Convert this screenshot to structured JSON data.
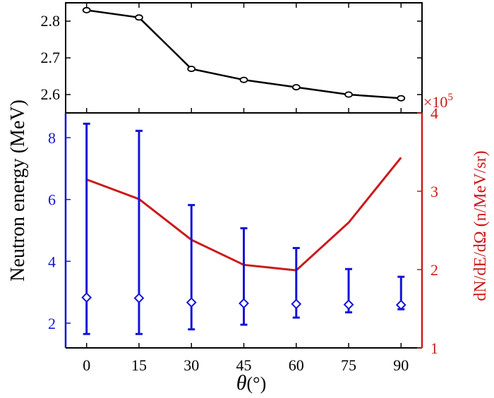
{
  "colors": {
    "top_line": "#000000",
    "left_axis": "#1414d6",
    "right_axis": "#cc1a1a"
  },
  "labels": {
    "ylabel_left": "Neutron energy (MeV)",
    "ylabel_right": "dN/dE/dΩ (n/MeV/sr)",
    "xlabel_symbol": "θ",
    "xlabel_unit": "(°)",
    "multiplier_prefix": "×10",
    "multiplier_exp": "5"
  },
  "chart_data": [
    {
      "type": "line",
      "panel": "top",
      "x": [
        0,
        15,
        30,
        45,
        60,
        75,
        90
      ],
      "series": [
        {
          "values": [
            2.83,
            2.81,
            2.67,
            2.64,
            2.62,
            2.6,
            2.59
          ],
          "color": "#000000",
          "marker": "circle"
        }
      ],
      "ylim": [
        2.55,
        2.85
      ],
      "yticks": [
        2.6,
        2.7,
        2.8
      ],
      "ytick_labels": [
        "2.6",
        "2.7",
        "2.8"
      ]
    },
    {
      "type": "line",
      "panel": "bottom",
      "x": [
        0,
        15,
        30,
        45,
        60,
        75,
        90
      ],
      "xticks": [
        0,
        15,
        30,
        45,
        60,
        75,
        90
      ],
      "xtick_labels": [
        "0",
        "15",
        "30",
        "45",
        "60",
        "75",
        "90"
      ],
      "xlim": [
        -6,
        96
      ],
      "left_axis": {
        "ylim": [
          1.2,
          8.8
        ],
        "yticks": [
          2,
          4,
          6,
          8
        ],
        "ytick_labels": [
          "2",
          "4",
          "6",
          "8"
        ],
        "series": [
          {
            "values": [
              2.83,
              2.81,
              2.67,
              2.64,
              2.62,
              2.6,
              2.59
            ],
            "err_low": [
              1.65,
              1.65,
              1.8,
              1.95,
              2.18,
              2.35,
              2.45
            ],
            "err_high": [
              8.45,
              8.22,
              5.82,
              5.07,
              4.43,
              3.75,
              3.5
            ],
            "color": "#1414d6",
            "marker": "diamond"
          }
        ]
      },
      "right_axis": {
        "ylim": [
          1,
          4
        ],
        "yticks": [
          1,
          2,
          3,
          4
        ],
        "ytick_labels": [
          "1",
          "2",
          "3",
          "4"
        ],
        "series": [
          {
            "values": [
              3.15,
              2.9,
              2.38,
              2.06,
              1.99,
              2.6,
              3.43
            ],
            "color": "#cc1a1a",
            "marker": "none"
          }
        ]
      }
    }
  ]
}
